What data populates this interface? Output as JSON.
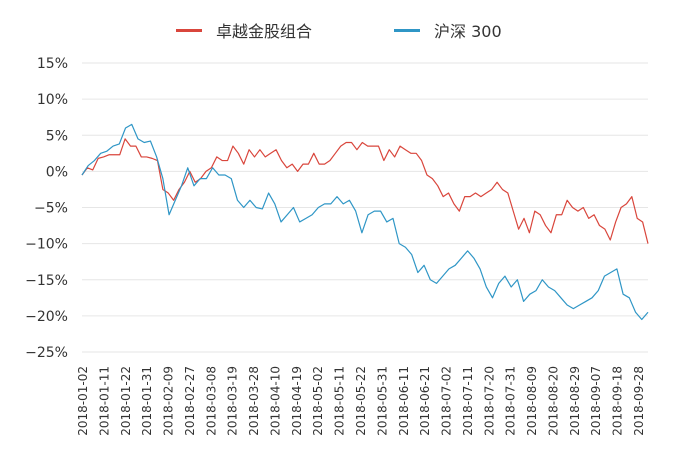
{
  "chart_data": {
    "type": "line",
    "title": "",
    "xlabel": "",
    "ylabel": "",
    "ylim": [
      -25,
      15
    ],
    "yticks": [
      "15%",
      "10%",
      "5%",
      "0%",
      "−5%",
      "−10%",
      "−15%",
      "−20%",
      "−25%"
    ],
    "ytick_values": [
      15,
      10,
      5,
      0,
      -5,
      -10,
      -15,
      -20,
      -25
    ],
    "grid": true,
    "legend_position": "top",
    "x_tick_labels": [
      "2018-01-02",
      "2018-01-11",
      "2018-01-22",
      "2018-01-31",
      "2018-02-09",
      "2018-02-27",
      "2018-03-08",
      "2018-03-19",
      "2018-03-28",
      "2018-04-10",
      "2018-04-19",
      "2018-05-02",
      "2018-05-11",
      "2018-05-22",
      "2018-05-31",
      "2018-06-11",
      "2018-06-21",
      "2018-07-02",
      "2018-07-11",
      "2018-07-20",
      "2018-07-31",
      "2018-08-09",
      "2018-08-20",
      "2018-08-29",
      "2018-09-07",
      "2018-09-18",
      "2018-09-28"
    ],
    "series": [
      {
        "name": "卓越金股组合",
        "color": "#d9463c",
        "values": [
          -0.5,
          0.5,
          0.2,
          1.8,
          2.0,
          2.3,
          2.3,
          2.3,
          4.5,
          3.5,
          3.5,
          2.0,
          2.0,
          1.8,
          1.5,
          -2.5,
          -3.0,
          -4.0,
          -2.5,
          -1.5,
          0.0,
          -1.5,
          -1.0,
          0.0,
          0.5,
          2.0,
          1.5,
          1.5,
          3.5,
          2.5,
          1.0,
          3.0,
          2.0,
          3.0,
          2.0,
          2.5,
          3.0,
          1.5,
          0.5,
          1.0,
          0.0,
          1.0,
          1.0,
          2.5,
          1.0,
          1.0,
          1.5,
          2.5,
          3.5,
          4.0,
          4.0,
          3.0,
          4.0,
          3.5,
          3.5,
          3.5,
          1.5,
          3.0,
          2.0,
          3.5,
          3.0,
          2.5,
          2.5,
          1.5,
          -0.5,
          -1.0,
          -2.0,
          -3.5,
          -3.0,
          -4.5,
          -5.5,
          -3.5,
          -3.5,
          -3.0,
          -3.5,
          -3.0,
          -2.5,
          -1.5,
          -2.5,
          -3.0,
          -5.5,
          -8.0,
          -6.5,
          -8.5,
          -5.5,
          -6.0,
          -7.5,
          -8.5,
          -6.0,
          -6.0,
          -4.0,
          -5.0,
          -5.5,
          -5.0,
          -6.5,
          -6.0,
          -7.5,
          -8.0,
          -9.5,
          -7.0,
          -5.0,
          -4.5,
          -3.5,
          -6.5,
          -7.0,
          -10.0
        ]
      },
      {
        "name": "沪深 300",
        "color": "#2f96c6",
        "values": [
          -0.5,
          0.8,
          1.5,
          2.5,
          2.8,
          3.5,
          3.8,
          6.0,
          6.5,
          4.5,
          4.0,
          4.2,
          2.0,
          -1.0,
          -6.0,
          -4.0,
          -2.0,
          0.5,
          -2.0,
          -1.0,
          -1.0,
          0.5,
          -0.5,
          -0.5,
          -1.0,
          -4.0,
          -5.0,
          -4.0,
          -5.0,
          -5.2,
          -3.0,
          -4.5,
          -7.0,
          -6.0,
          -5.0,
          -7.0,
          -6.5,
          -6.0,
          -5.0,
          -4.5,
          -4.5,
          -3.5,
          -4.5,
          -4.0,
          -5.5,
          -8.5,
          -6.0,
          -5.5,
          -5.5,
          -7.0,
          -6.5,
          -10.0,
          -10.5,
          -11.5,
          -14.0,
          -13.0,
          -15.0,
          -15.5,
          -14.5,
          -13.5,
          -13.0,
          -12.0,
          -11.0,
          -12.0,
          -13.5,
          -16.0,
          -17.5,
          -15.5,
          -14.5,
          -16.0,
          -15.0,
          -18.0,
          -17.0,
          -16.5,
          -15.0,
          -16.0,
          -16.5,
          -17.5,
          -18.5,
          -19.0,
          -18.5,
          -18.0,
          -17.5,
          -16.5,
          -14.5,
          -14.0,
          -13.5,
          -17.0,
          -17.5,
          -19.5,
          -20.5,
          -19.5
        ]
      }
    ]
  },
  "legend": {
    "items": [
      {
        "label": "卓越金股组合",
        "color": "#d9463c"
      },
      {
        "label": "沪深 300",
        "color": "#2f96c6"
      }
    ]
  }
}
